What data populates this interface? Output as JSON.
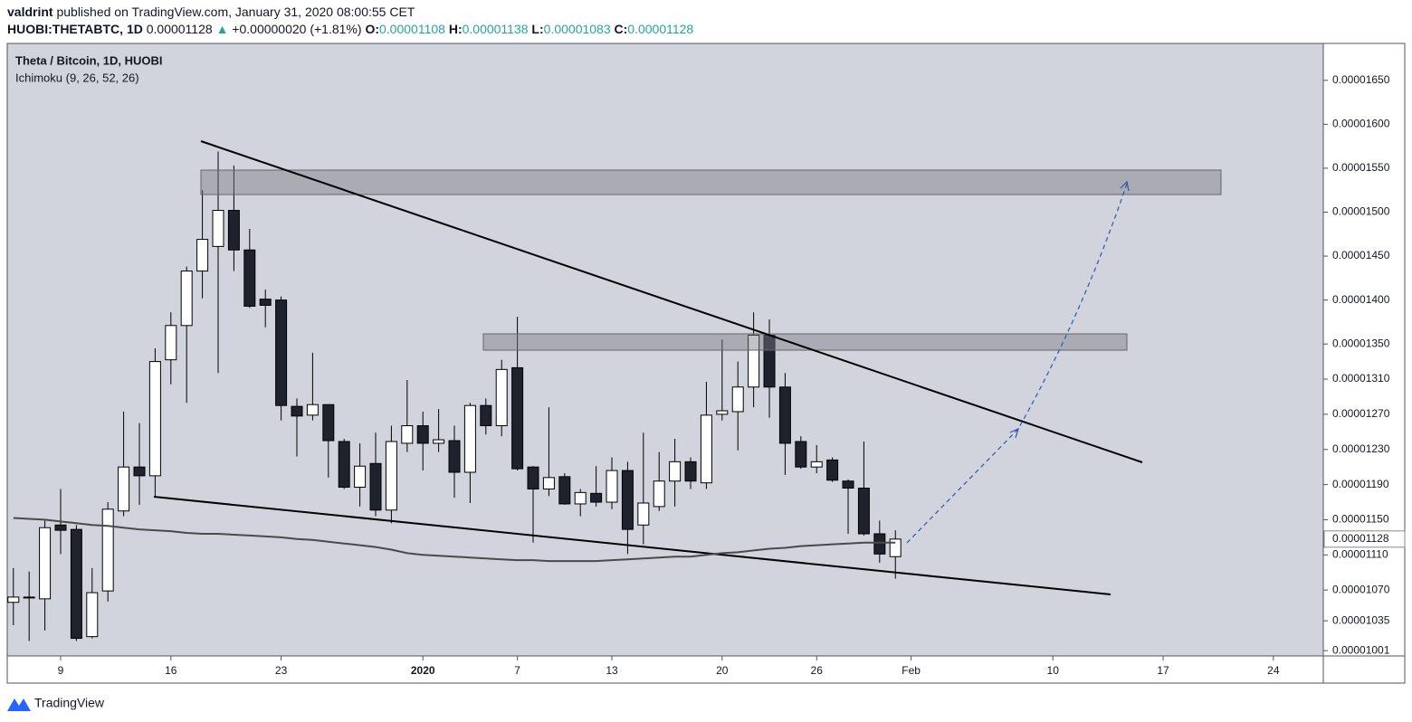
{
  "header": {
    "line1": [
      {
        "text": "valdrint",
        "bold": true,
        "color": "#131722"
      },
      {
        "text": " published on TradingView.com, January 31, 2020 08:00:55 CET",
        "bold": false,
        "color": "#131722"
      }
    ],
    "line2": [
      {
        "text": "HUOBI:THETABTC, 1D",
        "bold": true,
        "color": "#131722"
      },
      {
        "text": " 0.00001128 ",
        "bold": false,
        "color": "#131722"
      },
      {
        "text": "▲",
        "bold": false,
        "color": "#26a69a"
      },
      {
        "text": " +0.00000020 (+1.81%) ",
        "bold": false,
        "color": "#131722"
      },
      {
        "text": "O:",
        "bold": true,
        "color": "#131722"
      },
      {
        "text": "0.00001108",
        "bold": false,
        "color": "#26a69a"
      },
      {
        "text": " H:",
        "bold": true,
        "color": "#131722"
      },
      {
        "text": "0.00001138",
        "bold": false,
        "color": "#26a69a"
      },
      {
        "text": " L:",
        "bold": true,
        "color": "#131722"
      },
      {
        "text": "0.00001083",
        "bold": false,
        "color": "#26a69a"
      },
      {
        "text": " C:",
        "bold": true,
        "color": "#131722"
      },
      {
        "text": "0.00001128",
        "bold": false,
        "color": "#26a69a"
      }
    ]
  },
  "chart_data": {
    "type": "candlestick",
    "title": "Theta / Bitcoin, 1D, HUOBI",
    "subtitle": "Ichimoku (9, 26, 52, 26)",
    "x": [
      -3,
      -2,
      -1,
      0,
      1,
      2,
      3,
      4,
      5,
      6,
      7,
      8,
      9,
      10,
      11,
      12,
      13,
      14,
      15,
      16,
      17,
      18,
      19,
      20,
      21,
      22,
      23,
      24,
      25,
      26,
      27,
      28,
      29,
      30,
      31,
      32,
      33,
      34,
      35,
      36,
      37,
      38,
      39,
      40,
      41,
      42,
      43,
      44,
      45,
      46,
      47,
      48,
      49,
      50,
      51,
      52,
      53
    ],
    "open": [
      1.056e-05,
      1.061e-05,
      1.06e-05,
      1.144e-05,
      1.139e-05,
      1.017e-05,
      1.069e-05,
      1.16e-05,
      1.21e-05,
      1.2e-05,
      1.332e-05,
      1.371e-05,
      1.433e-05,
      1.461e-05,
      1.502e-05,
      1.457e-05,
      1.401e-05,
      1.4e-05,
      1.279e-05,
      1.269e-05,
      1.281e-05,
      1.239e-05,
      1.187e-05,
      1.214e-05,
      1.161e-05,
      1.237e-05,
      1.257e-05,
      1.237e-05,
      1.24e-05,
      1.204e-05,
      1.28e-05,
      1.257e-05,
      1.323e-05,
      1.21e-05,
      1.185e-05,
      1.199e-05,
      1.168e-05,
      1.18e-05,
      1.17e-05,
      1.206e-05,
      1.144e-05,
      1.165e-05,
      1.194e-05,
      1.216e-05,
      1.192e-05,
      1.27e-05,
      1.273e-05,
      1.301e-05,
      1.36e-05,
      1.301e-05,
      1.239e-05,
      1.21e-05,
      1.218e-05,
      1.194e-05,
      1.186e-05,
      1.134e-05,
      1.108e-05
    ],
    "high": [
      1.095e-05,
      1.091e-05,
      1.149e-05,
      1.185e-05,
      1.144e-05,
      1.095e-05,
      1.17e-05,
      1.273e-05,
      1.26e-05,
      1.345e-05,
      1.386e-05,
      1.438e-05,
      1.525e-05,
      1.569e-05,
      1.553e-05,
      1.481e-05,
      1.412e-05,
      1.404e-05,
      1.288e-05,
      1.34e-05,
      1.281e-05,
      1.242e-05,
      1.237e-05,
      1.249e-05,
      1.257e-05,
      1.309e-05,
      1.273e-05,
      1.276e-05,
      1.257e-05,
      1.283e-05,
      1.288e-05,
      1.332e-05,
      1.381e-05,
      1.211e-05,
      1.278e-05,
      1.203e-05,
      1.185e-05,
      1.211e-05,
      1.221e-05,
      1.216e-05,
      1.249e-05,
      1.227e-05,
      1.242e-05,
      1.221e-05,
      1.307e-05,
      1.355e-05,
      1.33e-05,
      1.386e-05,
      1.378e-05,
      1.317e-05,
      1.245e-05,
      1.235e-05,
      1.221e-05,
      1.196e-05,
      1.239e-05,
      1.149e-05,
      1.138e-05
    ],
    "low": [
      1.03e-05,
      1.012e-05,
      1.024e-05,
      1.111e-05,
      1.012e-05,
      1.015e-05,
      1.057e-05,
      1.154e-05,
      1.167e-05,
      1.175e-05,
      1.304e-05,
      1.283e-05,
      1.402e-05,
      1.317e-05,
      1.433e-05,
      1.391e-05,
      1.369e-05,
      1.263e-05,
      1.222e-05,
      1.263e-05,
      1.198e-05,
      1.185e-05,
      1.165e-05,
      1.154e-05,
      1.146e-05,
      1.227e-05,
      1.206e-05,
      1.227e-05,
      1.175e-05,
      1.169e-05,
      1.247e-05,
      1.245e-05,
      1.206e-05,
      1.124e-05,
      1.177e-05,
      1.167e-05,
      1.154e-05,
      1.165e-05,
      1.162e-05,
      1.111e-05,
      1.122e-05,
      1.16e-05,
      1.165e-05,
      1.185e-05,
      1.185e-05,
      1.263e-05,
      1.229e-05,
      1.278e-05,
      1.266e-05,
      1.201e-05,
      1.208e-05,
      1.203e-05,
      1.193e-05,
      1.134e-05,
      1.132e-05,
      1.101e-05,
      1.083e-05
    ],
    "close": [
      1.062e-05,
      1.062e-05,
      1.141e-05,
      1.138e-05,
      1.015e-05,
      1.067e-05,
      1.162e-05,
      1.21e-05,
      1.2e-05,
      1.33e-05,
      1.371e-05,
      1.433e-05,
      1.469e-05,
      1.502e-05,
      1.457e-05,
      1.393e-05,
      1.394e-05,
      1.28e-05,
      1.268e-05,
      1.281e-05,
      1.24e-05,
      1.187e-05,
      1.211e-05,
      1.161e-05,
      1.239e-05,
      1.257e-05,
      1.237e-05,
      1.241e-05,
      1.204e-05,
      1.28e-05,
      1.257e-05,
      1.321e-05,
      1.208e-05,
      1.185e-05,
      1.198e-05,
      1.168e-05,
      1.181e-05,
      1.17e-05,
      1.206e-05,
      1.139e-05,
      1.169e-05,
      1.194e-05,
      1.216e-05,
      1.194e-05,
      1.269e-05,
      1.274e-05,
      1.301e-05,
      1.36e-05,
      1.301e-05,
      1.237e-05,
      1.21e-05,
      1.216e-05,
      1.195e-05,
      1.186e-05,
      1.134e-05,
      1.111e-05,
      1.128e-05
    ],
    "indicator": {
      "color": "#4a4a4a",
      "values": [
        1.152e-05,
        1.151e-05,
        1.15e-05,
        1.148e-05,
        1.146e-05,
        1.144e-05,
        1.143e-05,
        1.141e-05,
        1.139e-05,
        1.138e-05,
        1.137e-05,
        1.135e-05,
        1.134e-05,
        1.134e-05,
        1.133e-05,
        1.132e-05,
        1.131e-05,
        1.13e-05,
        1.128e-05,
        1.127e-05,
        1.125e-05,
        1.123e-05,
        1.121e-05,
        1.119e-05,
        1.116e-05,
        1.112e-05,
        1.11e-05,
        1.109e-05,
        1.108e-05,
        1.107e-05,
        1.106e-05,
        1.105e-05,
        1.104e-05,
        1.104e-05,
        1.103e-05,
        1.103e-05,
        1.103e-05,
        1.103e-05,
        1.104e-05,
        1.105e-05,
        1.106e-05,
        1.107e-05,
        1.108e-05,
        1.108e-05,
        1.11e-05,
        1.112e-05,
        1.113e-05,
        1.115e-05,
        1.117e-05,
        1.118e-05,
        1.12e-05,
        1.121e-05,
        1.122e-05,
        1.123e-05,
        1.124e-05,
        1.124e-05,
        1.124e-05
      ]
    },
    "up_color": "#ffffff",
    "down_color": "#1e222d",
    "border_color": "#000000",
    "background": "#d1d4dc",
    "grid": false,
    "xlim": [
      -3.39,
      80.17
    ],
    "xticks": [
      {
        "value": 0,
        "label": "9"
      },
      {
        "value": 7,
        "label": "16"
      },
      {
        "value": 14,
        "label": "23"
      },
      {
        "value": 23,
        "label": "2020"
      },
      {
        "value": 29,
        "label": "7"
      },
      {
        "value": 35,
        "label": "13"
      },
      {
        "value": 42,
        "label": "20"
      },
      {
        "value": 48,
        "label": "26"
      },
      {
        "value": 54,
        "label": "Feb"
      },
      {
        "value": 63,
        "label": "10"
      },
      {
        "value": 70,
        "label": "17"
      },
      {
        "value": 77,
        "label": "24"
      }
    ],
    "ylim": [
      9.95e-06,
      1.692e-05
    ],
    "yticks": [
      {
        "value": 1.65e-05,
        "label": "0.00001650"
      },
      {
        "value": 1.6e-05,
        "label": "0.00001600"
      },
      {
        "value": 1.55e-05,
        "label": "0.00001550"
      },
      {
        "value": 1.5e-05,
        "label": "0.00001500"
      },
      {
        "value": 1.45e-05,
        "label": "0.00001450"
      },
      {
        "value": 1.4e-05,
        "label": "0.00001400"
      },
      {
        "value": 1.35e-05,
        "label": "0.00001350"
      },
      {
        "value": 1.31e-05,
        "label": "0.00001310"
      },
      {
        "value": 1.27e-05,
        "label": "0.00001270"
      },
      {
        "value": 1.23e-05,
        "label": "0.00001230"
      },
      {
        "value": 1.19e-05,
        "label": "0.00001190"
      },
      {
        "value": 1.15e-05,
        "label": "0.00001150"
      },
      {
        "value": 1.11e-05,
        "label": "0.00001110"
      },
      {
        "value": 1.07e-05,
        "label": "0.00001070"
      },
      1.035e-05,
      1.001e-05
    ],
    "last_price": 1.128e-05
  },
  "footer": {
    "brand": "TradingView"
  }
}
